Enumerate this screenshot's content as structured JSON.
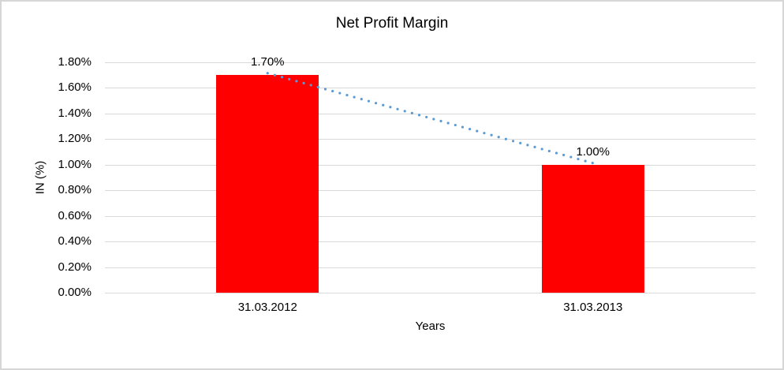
{
  "chart_data": {
    "type": "bar",
    "title": "Net Profit Margin",
    "xlabel": "Years",
    "ylabel": "IN (%)",
    "categories": [
      "31.03.2012",
      "31.03.2013"
    ],
    "values": [
      1.7,
      1.0
    ],
    "value_labels": [
      "1.70%",
      "1.00%"
    ],
    "ytick_labels": [
      "0.00%",
      "0.20%",
      "0.40%",
      "0.60%",
      "0.80%",
      "1.00%",
      "1.20%",
      "1.40%",
      "1.60%",
      "1.80%"
    ],
    "ylim": [
      0,
      1.8
    ],
    "grid": true,
    "legend_position": "none",
    "bar_color": "#FF0000",
    "gridline_color": "#D9D9D9",
    "text_color": "#000000",
    "frame_border_color": "#D6D6D6",
    "trendline": {
      "type": "linear",
      "style": "dotted",
      "color": "#5B9BD5"
    }
  }
}
